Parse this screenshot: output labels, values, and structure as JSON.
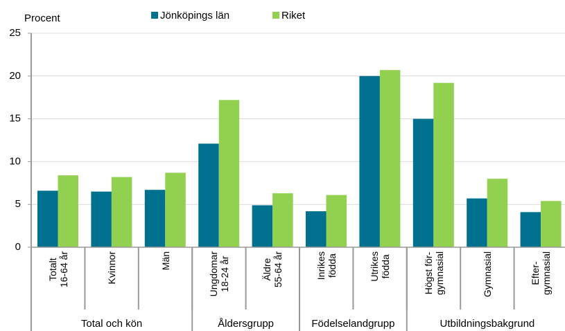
{
  "chart_data": {
    "type": "bar",
    "y_label": "Procent",
    "categories": [
      "Totalt\n16-64 år",
      "Kvinnor",
      "Män",
      "Ungdomar\n18-24 år",
      "Äldre\n55-64 år",
      "Inrikes\nfödda",
      "Utrikes\nfödda",
      "Högst för-\ngymnasial",
      "Gymnasial",
      "Efter-\ngymnasial"
    ],
    "category_groups": [
      {
        "label": "Total och kön",
        "span": 3
      },
      {
        "label": "Åldersgrupp",
        "span": 2
      },
      {
        "label": "Födelselandgrupp",
        "span": 2
      },
      {
        "label": "Utbildningsbakgrund",
        "span": 3
      }
    ],
    "series": [
      {
        "name": "Jönköpings län",
        "color": "#00708f",
        "values": [
          6.6,
          6.5,
          6.7,
          12.1,
          4.9,
          4.2,
          20.0,
          15.0,
          5.7,
          4.1
        ]
      },
      {
        "name": "Riket",
        "color": "#92d050",
        "values": [
          8.4,
          8.2,
          8.7,
          17.2,
          6.3,
          6.1,
          20.7,
          19.2,
          8.0,
          5.4
        ]
      }
    ],
    "ylim": [
      0,
      25
    ],
    "yticks": [
      0,
      5,
      10,
      15,
      20,
      25
    ],
    "grid": true
  }
}
